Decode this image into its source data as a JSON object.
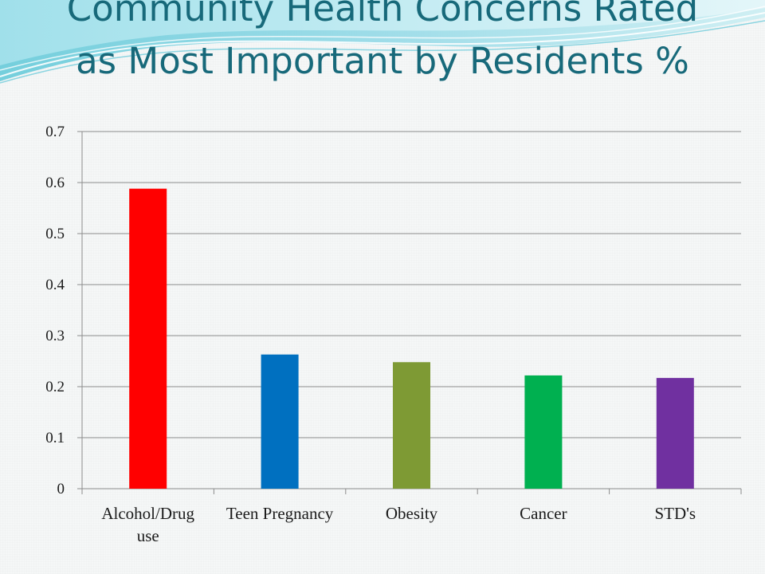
{
  "slide": {
    "title_line1": "Community Health Concerns Rated",
    "title_line2": "as Most Important by Residents %",
    "title_color": "#17697a",
    "decoration": "blue-wave-banner"
  },
  "chart_data": {
    "type": "bar",
    "title": "",
    "xlabel": "",
    "ylabel": "",
    "categories": [
      [
        "Alcohol/Drug",
        "use"
      ],
      [
        "Teen Pregnancy"
      ],
      [
        "Obesity"
      ],
      [
        "Cancer"
      ],
      [
        "STD's"
      ]
    ],
    "values": [
      0.588,
      0.263,
      0.248,
      0.222,
      0.217
    ],
    "colors": [
      "#ff0000",
      "#0070c0",
      "#7e9a34",
      "#00b050",
      "#7030a0"
    ],
    "ylim": [
      0,
      0.7
    ],
    "yticks": [
      "0",
      "0.1",
      "0.2",
      "0.3",
      "0.4",
      "0.5",
      "0.6",
      "0.7"
    ],
    "grid": true,
    "legend": "none"
  }
}
